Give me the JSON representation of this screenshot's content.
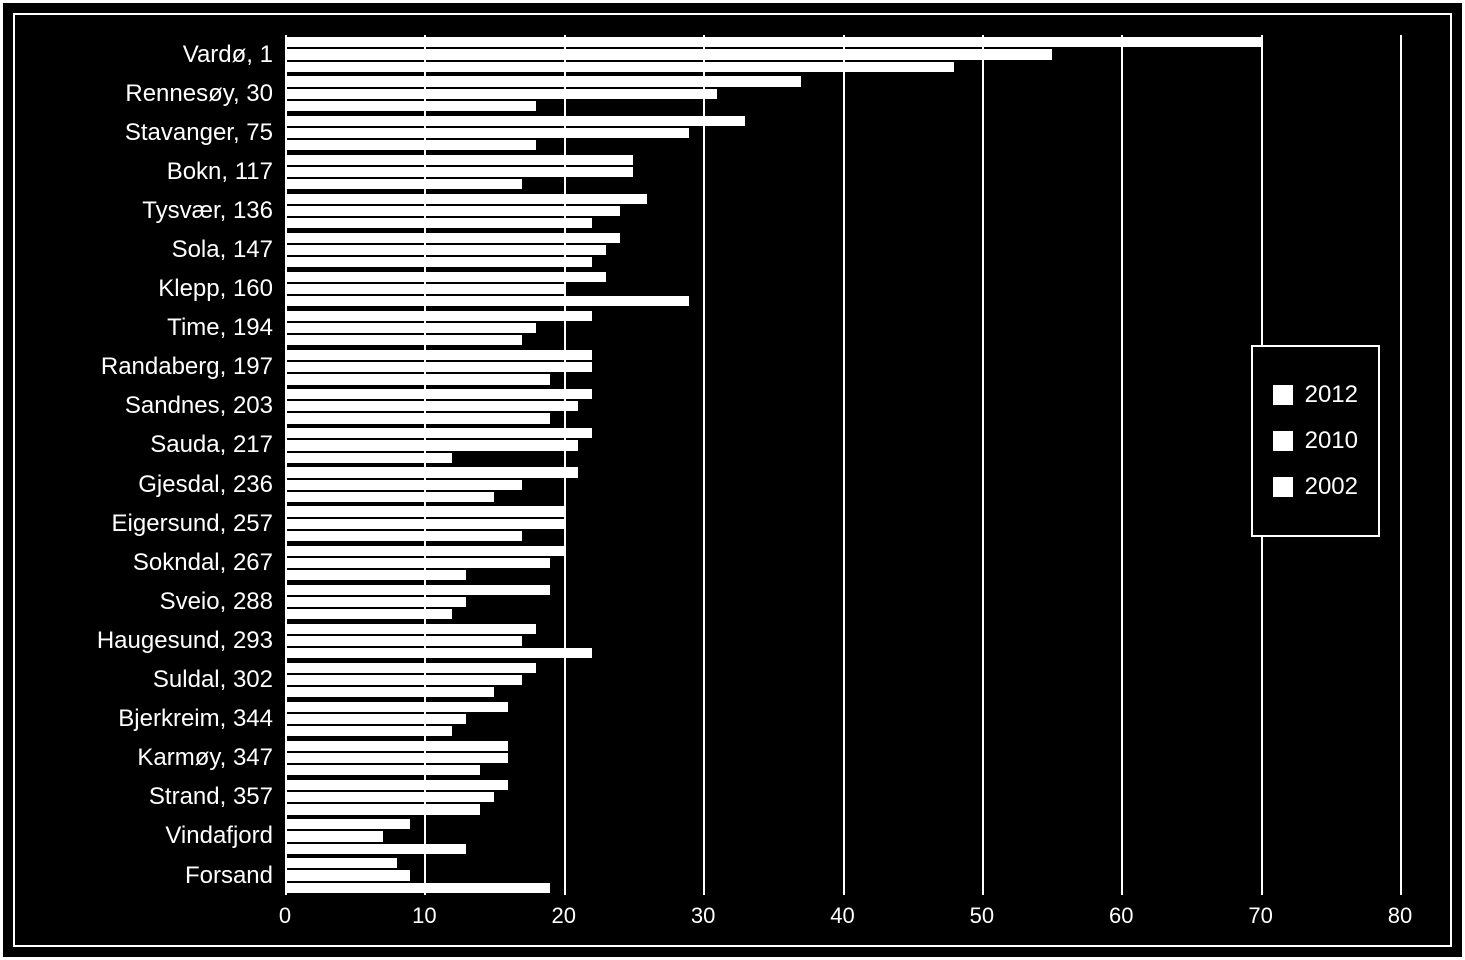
{
  "chart": {
    "type": "horizontal-grouped-bar",
    "background_color": "#000000",
    "bar_color": "#ffffff",
    "grid_color": "#ffffff",
    "text_color": "#ffffff",
    "border_color": "#ffffff",
    "font_family": "Arial",
    "label_fontsize": 24,
    "tick_fontsize": 22,
    "legend_fontsize": 24,
    "xlim": [
      0,
      80
    ],
    "xtick_step": 10,
    "xticks": [
      0,
      10,
      20,
      30,
      40,
      50,
      60,
      70,
      80
    ],
    "series_order_top_to_bottom": [
      "2012",
      "2010",
      "2002"
    ],
    "legend": {
      "position": "right",
      "items": [
        "2012",
        "2010",
        "2002"
      ]
    },
    "categories": [
      {
        "label": "Vardø, 1",
        "values": {
          "2012": 70,
          "2010": 55,
          "2002": 48
        }
      },
      {
        "label": "Rennesøy, 30",
        "values": {
          "2012": 37,
          "2010": 31,
          "2002": 18
        }
      },
      {
        "label": "Stavanger, 75",
        "values": {
          "2012": 33,
          "2010": 29,
          "2002": 18
        }
      },
      {
        "label": "Bokn, 117",
        "values": {
          "2012": 25,
          "2010": 25,
          "2002": 17
        }
      },
      {
        "label": "Tysvær, 136",
        "values": {
          "2012": 26,
          "2010": 24,
          "2002": 22
        }
      },
      {
        "label": "Sola, 147",
        "values": {
          "2012": 24,
          "2010": 23,
          "2002": 22
        }
      },
      {
        "label": "Klepp, 160",
        "values": {
          "2012": 23,
          "2010": 20,
          "2002": 29
        }
      },
      {
        "label": "Time, 194",
        "values": {
          "2012": 22,
          "2010": 18,
          "2002": 17
        }
      },
      {
        "label": "Randaberg, 197",
        "values": {
          "2012": 22,
          "2010": 22,
          "2002": 19
        }
      },
      {
        "label": "Sandnes, 203",
        "values": {
          "2012": 22,
          "2010": 21,
          "2002": 19
        }
      },
      {
        "label": "Sauda, 217",
        "values": {
          "2012": 22,
          "2010": 21,
          "2002": 12
        }
      },
      {
        "label": "Gjesdal, 236",
        "values": {
          "2012": 21,
          "2010": 17,
          "2002": 15
        }
      },
      {
        "label": "Eigersund, 257",
        "values": {
          "2012": 20,
          "2010": 20,
          "2002": 17
        }
      },
      {
        "label": "Sokndal, 267",
        "values": {
          "2012": 20,
          "2010": 19,
          "2002": 13
        }
      },
      {
        "label": "Sveio, 288",
        "values": {
          "2012": 19,
          "2010": 13,
          "2002": 12
        }
      },
      {
        "label": "Haugesund, 293",
        "values": {
          "2012": 18,
          "2010": 17,
          "2002": 22
        }
      },
      {
        "label": "Suldal, 302",
        "values": {
          "2012": 18,
          "2010": 17,
          "2002": 15
        }
      },
      {
        "label": "Bjerkreim, 344",
        "values": {
          "2012": 16,
          "2010": 13,
          "2002": 12
        }
      },
      {
        "label": "Karmøy, 347",
        "values": {
          "2012": 16,
          "2010": 16,
          "2002": 14
        }
      },
      {
        "label": "Strand, 357",
        "values": {
          "2012": 16,
          "2010": 15,
          "2002": 14
        }
      },
      {
        "label": "Vindafjord",
        "values": {
          "2012": 9,
          "2010": 7,
          "2002": 13
        }
      },
      {
        "label": "Forsand",
        "values": {
          "2012": 8,
          "2010": 9,
          "2002": 19
        }
      }
    ]
  }
}
